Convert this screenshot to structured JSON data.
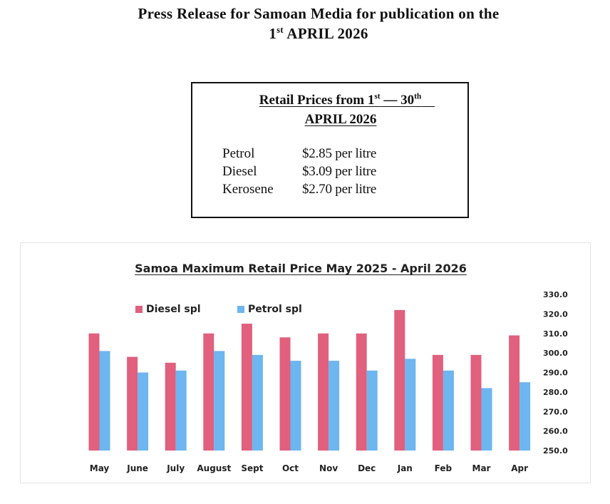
{
  "header": {
    "line1": "Press Release for Samoan Media for publication on the",
    "line2_day": "1",
    "line2_sup": "st",
    "line2_rest": " APRIL 2026"
  },
  "price_box": {
    "heading_pre": "Retail Prices from 1",
    "heading_sup1": "st",
    "heading_mid": " — 30",
    "heading_sup2": "th",
    "heading_line2": "APRIL 2026",
    "items": [
      {
        "fuel": "Petrol",
        "price": "$2.85 per litre"
      },
      {
        "fuel": "Diesel",
        "price": "$3.09 per litre"
      },
      {
        "fuel": "Kerosene",
        "price": "$2.70 per litre"
      }
    ]
  },
  "chart_data": {
    "type": "bar",
    "title": "Samoa Maximum Retail Price  May 2025 - April 2026",
    "categories": [
      "May",
      "June",
      "July",
      "August",
      "Sept",
      "Oct",
      "Nov",
      "Dec",
      "Jan",
      "Feb",
      "Mar",
      "Apr"
    ],
    "series": [
      {
        "name": "Diesel spl",
        "color": "#e0607e",
        "values": [
          310,
          298,
          295,
          310,
          315,
          308,
          310,
          310,
          322,
          299,
          299,
          309
        ]
      },
      {
        "name": "Petrol spl",
        "color": "#6db6ef",
        "values": [
          301,
          290,
          291,
          301,
          299,
          296,
          296,
          291,
          297,
          291,
          282,
          285
        ]
      }
    ],
    "y_ticks": [
      "330.0",
      "320.0",
      "310.0",
      "300.0",
      "290.0",
      "280.0",
      "270.0",
      "260.0",
      "250.0"
    ],
    "ylim": [
      250,
      330
    ],
    "y_axis_side": "right",
    "legend": "top-left",
    "grid": false
  }
}
